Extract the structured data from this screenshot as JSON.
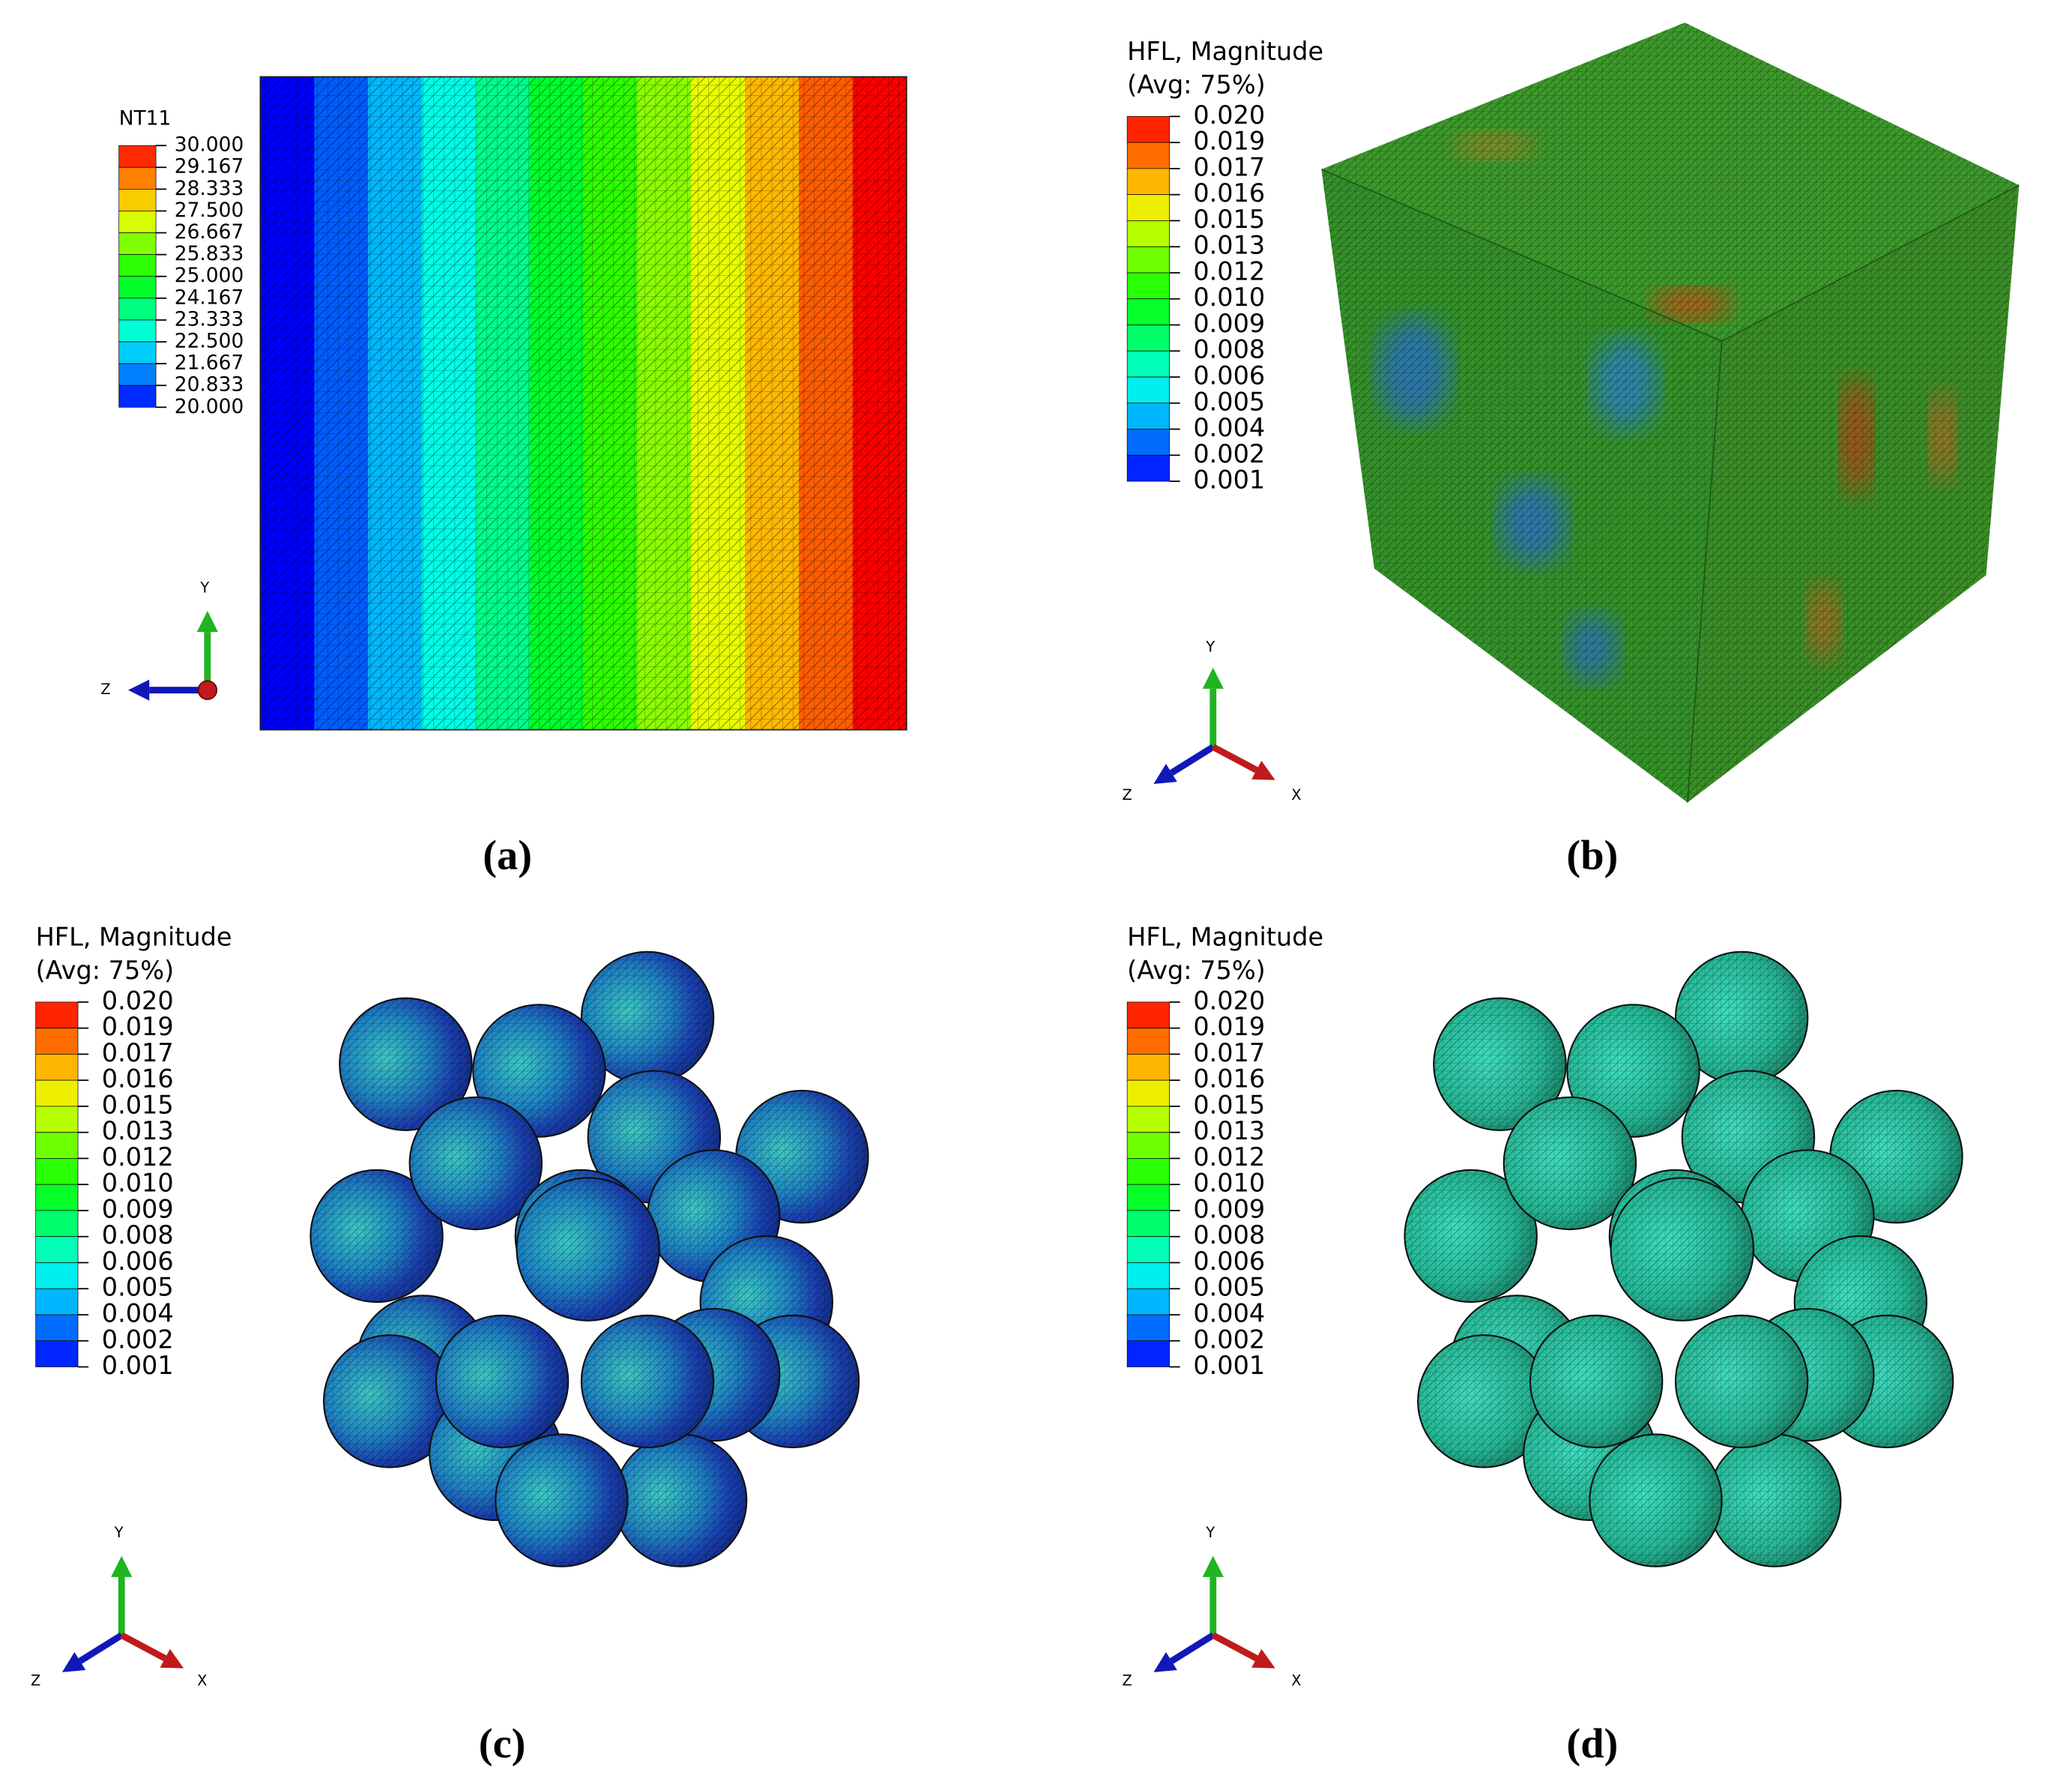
{
  "panels": [
    {
      "caption": "(a)",
      "legend": {
        "title": [
          "NT11"
        ],
        "labels": [
          "30.000",
          "29.167",
          "28.333",
          "27.500",
          "26.667",
          "25.833",
          "25.000",
          "24.167",
          "23.333",
          "22.500",
          "21.667",
          "20.833",
          "20.000"
        ]
      },
      "triad": [
        "Y",
        "Z"
      ]
    },
    {
      "caption": "(b)",
      "legend": {
        "title": [
          "HFL, Magnitude",
          "(Avg: 75%)"
        ],
        "labels": [
          "0.020",
          "0.019",
          "0.017",
          "0.016",
          "0.015",
          "0.013",
          "0.012",
          "0.010",
          "0.009",
          "0.008",
          "0.006",
          "0.005",
          "0.004",
          "0.002",
          "0.001"
        ]
      },
      "triad": [
        "Y",
        "Z",
        "X"
      ]
    },
    {
      "caption": "(c)",
      "legend": {
        "title": [
          "HFL, Magnitude",
          "(Avg: 75%)"
        ],
        "labels": [
          "0.020",
          "0.019",
          "0.017",
          "0.016",
          "0.015",
          "0.013",
          "0.012",
          "0.010",
          "0.009",
          "0.008",
          "0.006",
          "0.005",
          "0.004",
          "0.002",
          "0.001"
        ]
      },
      "triad": [
        "Y",
        "Z",
        "X"
      ]
    },
    {
      "caption": "(d)",
      "legend": {
        "title": [
          "HFL, Magnitude",
          "(Avg: 75%)"
        ],
        "labels": [
          "0.020",
          "0.019",
          "0.017",
          "0.016",
          "0.015",
          "0.013",
          "0.012",
          "0.010",
          "0.009",
          "0.008",
          "0.006",
          "0.005",
          "0.004",
          "0.002",
          "0.001"
        ]
      },
      "triad": [
        "Y",
        "Z",
        "X"
      ]
    }
  ]
}
